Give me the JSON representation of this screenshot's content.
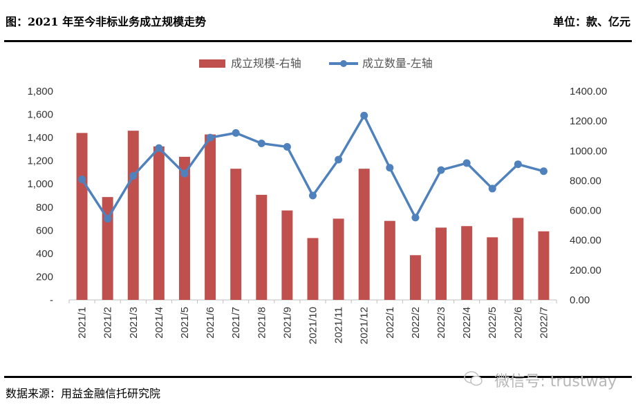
{
  "header": {
    "title": "图：2021 年至今非标业务成立规模走势",
    "unit": "单位：款、亿元"
  },
  "footer": {
    "source": "数据来源：用益金融信托研究院",
    "watermark": "微信号: trustway"
  },
  "colors": {
    "bar": "#C0504D",
    "line": "#4F81BD"
  },
  "chart_data": {
    "type": "bar",
    "categories": [
      "2021/1",
      "2021/2",
      "2021/3",
      "2021/4",
      "2021/5",
      "2021/6",
      "2021/7",
      "2021/8",
      "2021/9",
      "2021/10",
      "2021/11",
      "2021/12",
      "2022/1",
      "2022/2",
      "2022/3",
      "2022/4",
      "2022/5",
      "2022/6",
      "2022/7"
    ],
    "series": [
      {
        "name": "成立规模-右轴",
        "type": "bar",
        "axis": "right",
        "values": [
          1120,
          690,
          1135,
          1030,
          960,
          1110,
          880,
          705,
          600,
          415,
          545,
          880,
          530,
          300,
          485,
          495,
          420,
          550,
          460
        ]
      },
      {
        "name": "成立数量-左轴",
        "type": "line",
        "axis": "left",
        "values": [
          1040,
          700,
          1070,
          1310,
          1090,
          1400,
          1440,
          1350,
          1320,
          900,
          1210,
          1590,
          1140,
          710,
          1120,
          1180,
          960,
          1170,
          1110
        ]
      }
    ],
    "left_axis": {
      "ylim": [
        0,
        1800
      ],
      "ticks": [
        "-",
        "200",
        "400",
        "600",
        "800",
        "1,000",
        "1,200",
        "1,400",
        "1,600",
        "1,800"
      ]
    },
    "right_axis": {
      "ylim": [
        0,
        1400
      ],
      "ticks": [
        "0.00",
        "200.00",
        "400.00",
        "600.00",
        "800.00",
        "1000.00",
        "1200.00",
        "1400.00"
      ]
    },
    "grid": false,
    "legend_position": "top-center"
  }
}
